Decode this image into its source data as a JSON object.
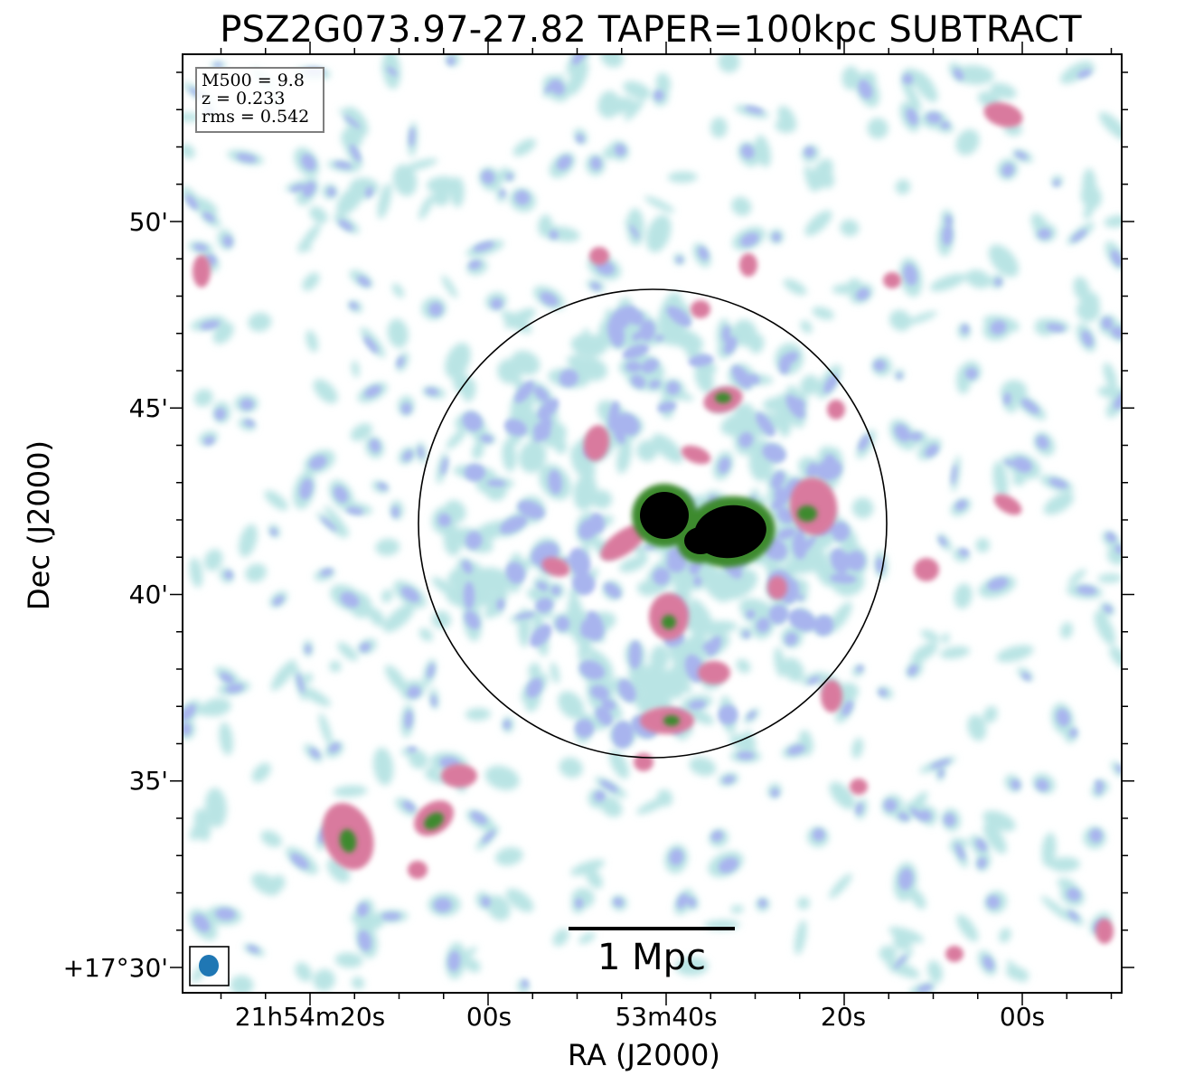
{
  "title": "PSZ2G073.97-27.82 TAPER=100kpc SUBTRACT",
  "info_box": {
    "m500": "M500 = 9.8",
    "redshift": "z = 0.233",
    "rms": "rms = 0.542"
  },
  "axes": {
    "xlabel": "RA (J2000)",
    "ylabel": "Dec (J2000)",
    "xticks": [
      "21h54m20s",
      "00s",
      "53m40s",
      "20s",
      "00s"
    ],
    "yticks": [
      "50'",
      "45'",
      "40'",
      "35'",
      "+17°30'"
    ]
  },
  "scalebar": {
    "label": "1 Mpc"
  },
  "colors": {
    "frame": "#000000",
    "low_emission": "#b9e4e4",
    "mid_emission": "#a8b4ee",
    "high_emission": "#d97a9e",
    "peak_emission": "#3e8a2e",
    "saturated": "#000000",
    "beam": "#1f77b4"
  }
}
